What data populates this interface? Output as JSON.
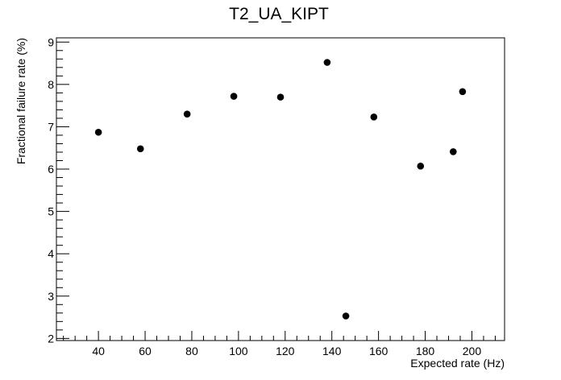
{
  "chart_data": {
    "type": "scatter",
    "title": "T2_UA_KIPT",
    "xlabel": "Expected rate (Hz)",
    "ylabel": "Fractional failure rate (%)",
    "xlim": [
      22,
      214
    ],
    "ylim": [
      1.95,
      9.1
    ],
    "x_major_ticks": [
      40,
      60,
      80,
      100,
      120,
      140,
      160,
      180,
      200
    ],
    "x_tick_labels": [
      "40",
      "60",
      "80",
      "100",
      "120",
      "140",
      "160",
      "180",
      "200"
    ],
    "x_minor_step": 5,
    "y_major_ticks": [
      2,
      3,
      4,
      5,
      6,
      7,
      8,
      9
    ],
    "y_tick_labels": [
      "2",
      "3",
      "4",
      "5",
      "6",
      "7",
      "8",
      "9"
    ],
    "y_minor_step": 0.2,
    "grid": false,
    "marker_color": "#000000",
    "series": [
      {
        "x": [
          40,
          58,
          78,
          98,
          118,
          138,
          146,
          158,
          178,
          192,
          196
        ],
        "y": [
          6.87,
          6.48,
          7.3,
          7.72,
          7.7,
          8.52,
          2.53,
          7.23,
          6.07,
          6.41,
          7.83
        ]
      }
    ]
  }
}
